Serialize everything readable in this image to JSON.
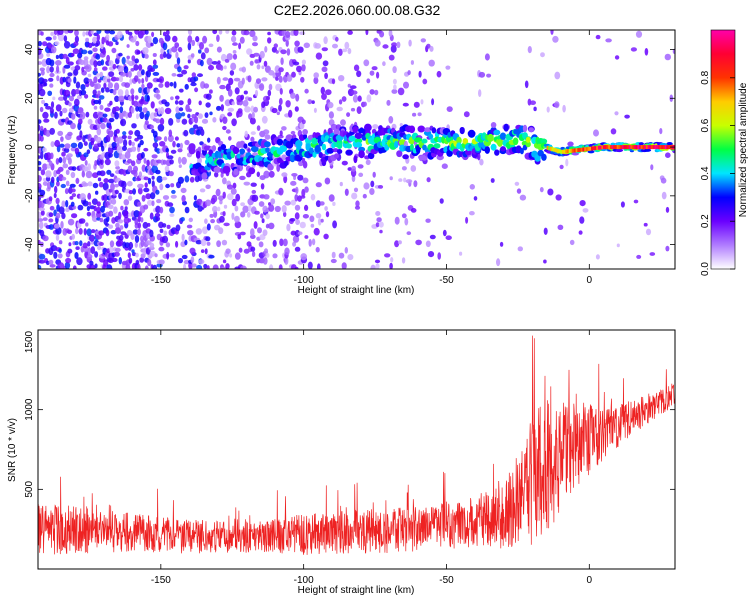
{
  "title": "C2E2.2026.060.00.08.G32",
  "chart_data": [
    {
      "type": "heatmap",
      "title": "C2E2.2026.060.00.08.G32",
      "xlabel": "Height of straight line (km)",
      "ylabel": "Frequency (Hz)",
      "xlim": [
        -193,
        30
      ],
      "ylim": [
        -50,
        48
      ],
      "xticks": [
        -150,
        -100,
        -50,
        0
      ],
      "yticks": [
        -40,
        -20,
        0,
        20,
        40
      ],
      "xtick_labels": [
        "-150",
        "-100",
        "-50",
        "0"
      ],
      "ytick_labels": [
        "-40",
        "-20",
        "0",
        "20",
        "40"
      ],
      "colorbar": {
        "label": "Normalized spectral amplitude",
        "range": [
          0,
          1
        ],
        "ticks": [
          0.0,
          0.2,
          0.4,
          0.6,
          0.8
        ],
        "tick_labels": [
          "0.0",
          "0.2",
          "0.4",
          "0.6",
          "0.8"
        ],
        "colors": [
          "#ffffff",
          "#b07cff",
          "#6a00ff",
          "#0000ff",
          "#00e5ff",
          "#00ff44",
          "#c8ff00",
          "#ffcc00",
          "#ff3300",
          "#ff0033",
          "#ff00aa"
        ]
      },
      "ridge": {
        "description": "Dominant spectral energy concentrated near 0 Hz, tightening with height",
        "points": [
          {
            "x": -135,
            "f": -6,
            "amp": 0.45
          },
          {
            "x": -110,
            "f": -2,
            "amp": 0.45
          },
          {
            "x": -80,
            "f": 2,
            "amp": 0.5
          },
          {
            "x": -50,
            "f": 2,
            "amp": 0.55
          },
          {
            "x": -25,
            "f": 3,
            "amp": 0.55
          },
          {
            "x": -10,
            "f": -2,
            "amp": 0.7
          },
          {
            "x": 5,
            "f": 0,
            "amp": 0.85
          },
          {
            "x": 25,
            "f": 0,
            "amp": 0.9
          }
        ]
      }
    },
    {
      "type": "line",
      "xlabel": "Height of straight line (km)",
      "ylabel": "SNR (10 * v/v)",
      "xlim": [
        -193,
        30
      ],
      "ylim": [
        0,
        1500
      ],
      "xticks": [
        -150,
        -100,
        -50,
        0
      ],
      "yticks": [
        500,
        1000,
        1500
      ],
      "xtick_labels": [
        "-150",
        "-100",
        "-50",
        "0"
      ],
      "ytick_labels": [
        "500",
        "1000",
        "1500"
      ],
      "line_color": "#ee2222",
      "series": [
        {
          "name": "SNR",
          "x": [
            -190,
            -175,
            -160,
            -145,
            -130,
            -115,
            -100,
            -85,
            -70,
            -55,
            -40,
            -30,
            -22,
            -15,
            -8,
            -2,
            5,
            15,
            25,
            30
          ],
          "baseline": [
            250,
            240,
            230,
            210,
            200,
            200,
            215,
            230,
            240,
            260,
            300,
            330,
            500,
            650,
            720,
            800,
            850,
            950,
            1050,
            1100
          ],
          "envelope": [
            550,
            500,
            450,
            420,
            380,
            380,
            450,
            480,
            500,
            520,
            600,
            700,
            1200,
            1450,
            1300,
            1250,
            1150,
            1150,
            1200,
            1250
          ]
        }
      ]
    }
  ]
}
